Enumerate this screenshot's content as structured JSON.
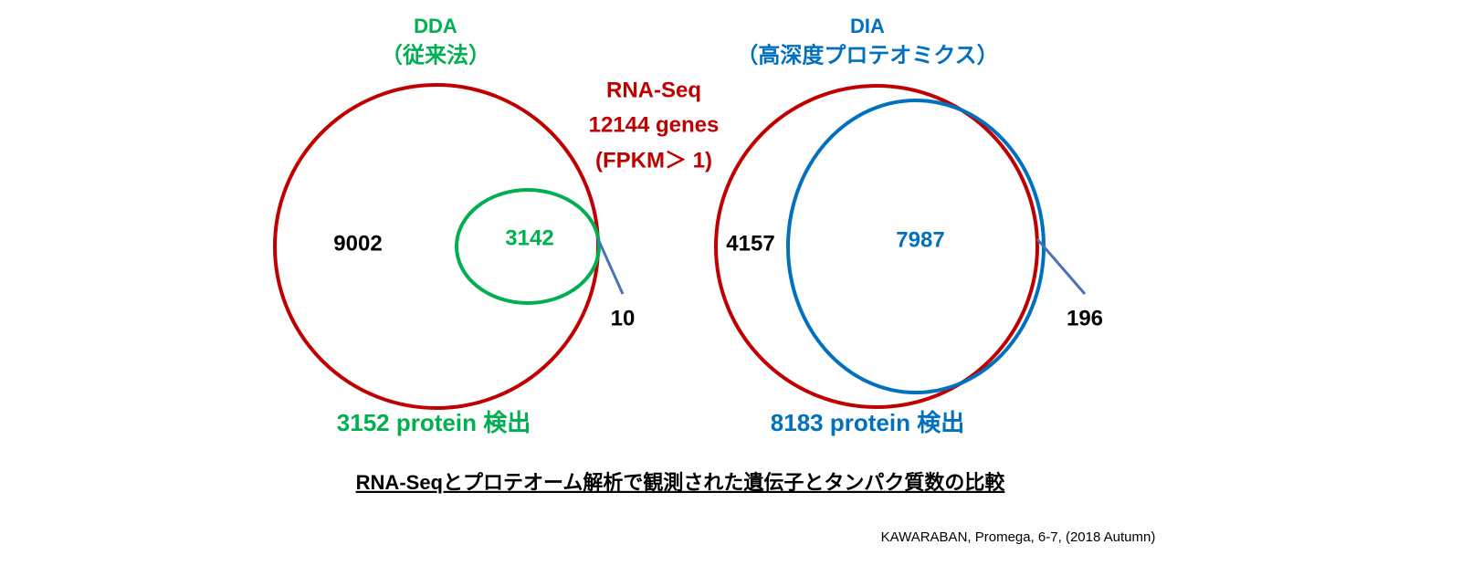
{
  "rna_seq": {
    "lines": [
      "RNA-Seq",
      "12144 genes",
      "(FPKM＞ 1)"
    ]
  },
  "dda": {
    "title": "DDA",
    "subtitle": "（従来法）",
    "rna_only": 9002,
    "overlap": 3142,
    "protein_only": 10,
    "detected": "3152 protein 検出"
  },
  "dia": {
    "title": "DIA",
    "subtitle": "（高深度プロテオミクス）",
    "rna_only": 4157,
    "overlap": 7987,
    "protein_only": 196,
    "detected": "8183 protein 検出"
  },
  "caption": "RNA-Seqとプロテオーム解析で観測された遺伝子とタンパク質数の比較",
  "citation": "KAWARABAN,  Promega, 6-7, (2018 Autumn)"
}
